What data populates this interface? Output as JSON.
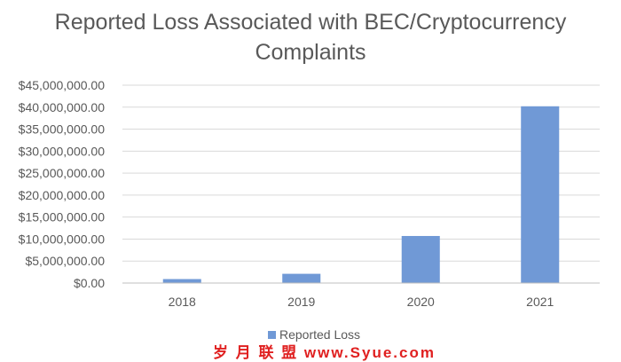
{
  "chart_data": {
    "type": "bar",
    "title_lines": [
      "Reported Loss Associated with BEC/Cryptocurrency",
      "Complaints"
    ],
    "categories": [
      "2018",
      "2019",
      "2020",
      "2021"
    ],
    "series": [
      {
        "name": "Reported Loss",
        "values": [
          900000,
          2100000,
          10700000,
          40200000
        ]
      }
    ],
    "ylim": [
      0,
      45000000
    ],
    "yticks": [
      0,
      5000000,
      10000000,
      15000000,
      20000000,
      25000000,
      30000000,
      35000000,
      40000000,
      45000000
    ],
    "ytick_labels": [
      "$0.00",
      "$5,000,000.00",
      "$10,000,000.00",
      "$15,000,000.00",
      "$20,000,000.00",
      "$25,000,000.00",
      "$30,000,000.00",
      "$35,000,000.00",
      "$40,000,000.00",
      "$45,000,000.00"
    ],
    "grid": true,
    "legend_position": "bottom",
    "bar_color": "#7099d6",
    "grid_color": "#d9d9d9",
    "axis_color": "#bfbfbf"
  },
  "watermark": {
    "text": "岁 月 联 盟   www.Syue.com",
    "color": "#e02020"
  }
}
